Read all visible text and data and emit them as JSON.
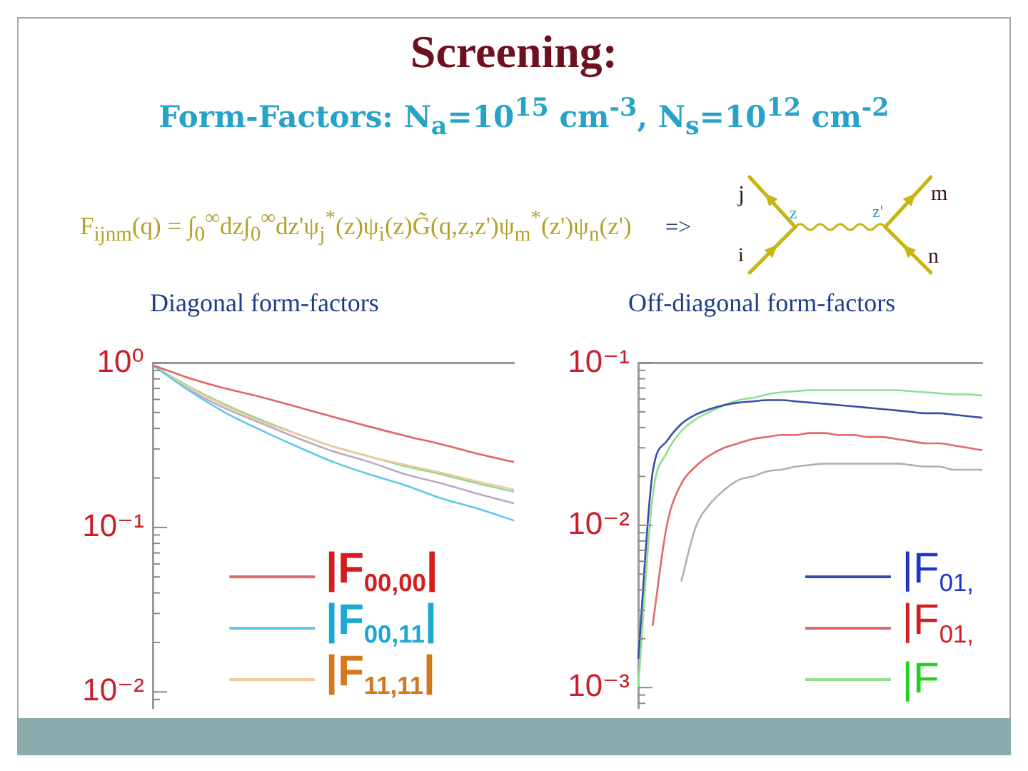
{
  "chart_data": [
    {
      "type": "other",
      "title": "Screening:",
      "subtitle": "Form-Factors: N$_{a}$=10$^{15}$ cm$^{-3}$, N$_{s}$=10$^{12}$ cm$^{-2}$",
      "annotations": [
        "F$_{ijnm}$(q) = ∫$_{0}$$^{∞}$dz∫$_{0}$$^{∞}$dz'ψ$_{j}$$^{*}$(z)ψ$_{i}$(z)G̃(q,z,z')ψ$_{m}$$^{*}$(z')ψ$_{n}$(z')",
        "=>",
        "j",
        "i",
        "z",
        "z'",
        "m",
        "n"
      ]
    },
    {
      "type": "line",
      "title": "Diagonal form-factors",
      "categories": [
        null,
        null,
        null,
        null,
        null,
        null,
        null,
        null,
        null,
        null,
        null
      ],
      "series": [
        {
          "name": "|F$_{00,00}$|",
          "color": "#e06666",
          "values": [
            0.97,
            0.81,
            0.7,
            0.62,
            0.54,
            0.47,
            0.41,
            0.36,
            0.32,
            0.28,
            0.25
          ]
        },
        {
          "name": "|F$_{00,11}$|",
          "color": "#5ec8ea",
          "values": [
            0.97,
            0.68,
            0.5,
            0.39,
            0.31,
            0.25,
            0.21,
            0.18,
            0.15,
            0.13,
            0.11
          ]
        },
        {
          "name": "|F$_{11,11}$|",
          "color": "#f0c8a0",
          "values": [
            0.97,
            0.71,
            0.55,
            0.44,
            0.37,
            0.31,
            0.27,
            0.24,
            0.215,
            0.19,
            0.17
          ]
        },
        {
          "color": "#90d890",
          "values": [
            0.97,
            0.72,
            0.56,
            0.45,
            0.37,
            0.31,
            0.27,
            0.235,
            0.21,
            0.185,
            0.165
          ]
        },
        {
          "color": "#b8aac4",
          "values": [
            0.97,
            0.69,
            0.53,
            0.43,
            0.35,
            0.29,
            0.25,
            0.21,
            0.185,
            0.16,
            0.14
          ]
        }
      ],
      "log": "y",
      "ylim": [
        0.008,
        1
      ],
      "yticks": [
        {
          "value": 1,
          "label": "10⁰"
        },
        {
          "value": 0.9,
          "label": null
        },
        {
          "value": 0.8,
          "label": null
        },
        {
          "value": 0.7,
          "label": null
        },
        {
          "value": 0.6,
          "label": null
        },
        {
          "value": 0.5,
          "label": null
        },
        {
          "value": 0.4,
          "label": null
        },
        {
          "value": 0.3,
          "label": null
        },
        {
          "value": 0.2,
          "label": null
        },
        {
          "value": 0.1,
          "label": "10⁻¹"
        },
        {
          "value": 0.09,
          "label": null
        },
        {
          "value": 0.08,
          "label": null
        },
        {
          "value": 0.07,
          "label": null
        },
        {
          "value": 0.06,
          "label": null
        },
        {
          "value": 0.05,
          "label": null
        },
        {
          "value": 0.04,
          "label": null
        },
        {
          "value": 0.03,
          "label": null
        },
        {
          "value": 0.02,
          "label": null
        },
        {
          "value": 0.01,
          "label": "10⁻²"
        },
        {
          "value": 0.009,
          "label": null
        }
      ],
      "legend": "bottom",
      "marker": "none",
      "tick_labels": "y"
    },
    {
      "type": "line",
      "title": "Off-diagonal form-factors",
      "categories": [
        null,
        null,
        null,
        null,
        null,
        null,
        null,
        null,
        null,
        null,
        null,
        null,
        null,
        null,
        null,
        null,
        null,
        null,
        null,
        null,
        null,
        null,
        null,
        null,
        null
      ],
      "series": [
        {
          "name": "|F$_{01,}$",
          "color": "#3a4aa8",
          "values": [
            0.0015,
            0.021,
            0.033,
            0.042,
            0.048,
            0.052,
            0.055,
            0.057,
            0.058,
            0.059,
            0.059,
            0.058,
            0.057,
            0.056,
            0.055,
            0.054,
            0.053,
            0.052,
            0.051,
            0.05,
            0.049,
            0.049,
            0.048,
            0.047,
            0.046
          ]
        },
        {
          "name": "|F$_{01,}$",
          "color": "#e06a6a",
          "values": [
            null,
            0.0024,
            0.01,
            0.018,
            0.023,
            0.027,
            0.03,
            0.032,
            0.034,
            0.035,
            0.036,
            0.036,
            0.037,
            0.037,
            0.036,
            0.036,
            0.035,
            0.035,
            0.034,
            0.033,
            0.032,
            0.032,
            0.031,
            0.03,
            0.029
          ]
        },
        {
          "name": "|F",
          "color": "#8ee08e",
          "values": [
            0.001,
            0.015,
            0.028,
            0.038,
            0.045,
            0.05,
            0.055,
            0.059,
            0.061,
            0.064,
            0.066,
            0.067,
            0.068,
            0.068,
            0.068,
            0.068,
            0.068,
            0.068,
            0.068,
            0.067,
            0.066,
            0.065,
            0.064,
            0.064,
            0.063
          ]
        },
        {
          "color": "#b0b0b0",
          "values": [
            null,
            null,
            null,
            0.0045,
            0.0097,
            0.0135,
            0.0165,
            0.019,
            0.02,
            0.0215,
            0.022,
            0.023,
            0.0235,
            0.024,
            0.024,
            0.024,
            0.024,
            0.024,
            0.024,
            0.0235,
            0.023,
            0.023,
            0.022,
            0.022,
            0.022
          ]
        }
      ],
      "log": "y",
      "ylim": [
        0.00075,
        0.1
      ],
      "yticks": [
        {
          "value": 0.1,
          "label": "10⁻¹"
        },
        {
          "value": 0.09,
          "label": null
        },
        {
          "value": 0.08,
          "label": null
        },
        {
          "value": 0.07,
          "label": null
        },
        {
          "value": 0.06,
          "label": null
        },
        {
          "value": 0.05,
          "label": null
        },
        {
          "value": 0.04,
          "label": null
        },
        {
          "value": 0.03,
          "label": null
        },
        {
          "value": 0.02,
          "label": null
        },
        {
          "value": 0.01,
          "label": "10⁻²"
        },
        {
          "value": 0.009,
          "label": null
        },
        {
          "value": 0.008,
          "label": null
        },
        {
          "value": 0.007,
          "label": null
        },
        {
          "value": 0.006,
          "label": null
        },
        {
          "value": 0.005,
          "label": null
        },
        {
          "value": 0.004,
          "label": null
        },
        {
          "value": 0.003,
          "label": null
        },
        {
          "value": 0.002,
          "label": null
        },
        {
          "value": 0.001,
          "label": "10⁻³"
        },
        {
          "value": 0.0009,
          "label": null
        },
        {
          "value": 0.0008,
          "label": null
        }
      ],
      "legend": "bottom right",
      "marker": "none",
      "tick_labels": "y"
    }
  ]
}
